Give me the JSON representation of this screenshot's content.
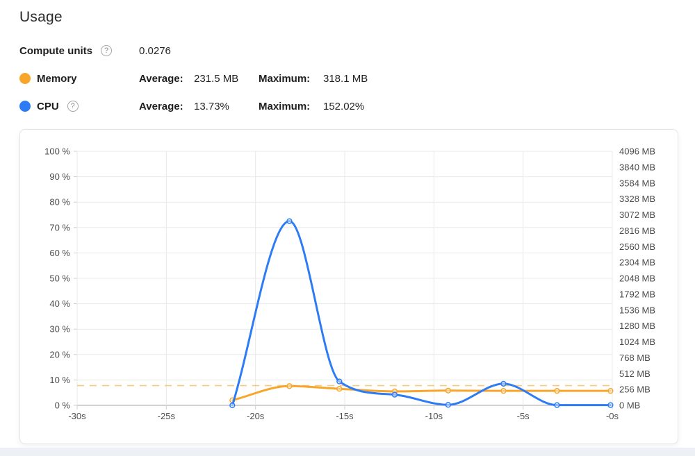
{
  "page": {
    "title": "Usage"
  },
  "stats": {
    "compute_units": {
      "label": "Compute units",
      "help_icon": "?",
      "value": "0.0276"
    },
    "memory": {
      "label": "Memory",
      "color": "#f7a62a",
      "average_label": "Average:",
      "average_value": "231.5 MB",
      "maximum_label": "Maximum:",
      "maximum_value": "318.1 MB"
    },
    "cpu": {
      "label": "CPU",
      "color": "#2e7cf5",
      "help_icon": "?",
      "average_label": "Average:",
      "average_value": "13.73%",
      "maximum_label": "Maximum:",
      "maximum_value": "152.02%"
    }
  },
  "chart_data": {
    "type": "line",
    "x_seconds": [
      -21.3,
      -18.1,
      -15.3,
      -12.2,
      -9.2,
      -6.1,
      -3.1,
      -0.1
    ],
    "series": [
      {
        "name": "Memory",
        "axis": "right",
        "unit": "MB",
        "color": "#f7a62a",
        "values": [
          82,
          310,
          266,
          225,
          238,
          233,
          233,
          233
        ]
      },
      {
        "name": "CPU",
        "axis": "left",
        "unit": "%",
        "color": "#2e7cf5",
        "values": [
          0,
          72.5,
          9.4,
          4.2,
          0.2,
          8.5,
          0.1,
          0.1
        ]
      }
    ],
    "reference_line": {
      "series": "Memory",
      "meaning": "maximum",
      "value": 318.1,
      "axis": "right",
      "style": "dashed",
      "color": "#f7a62a"
    },
    "left_axis": {
      "min": 0,
      "max": 100,
      "step": 10,
      "label_format": "{v} %"
    },
    "right_axis": {
      "min": 0,
      "max": 4096,
      "step": 256,
      "label_format": "{v} MB"
    },
    "x_axis": {
      "min": -30,
      "max": 0,
      "step": 5,
      "labels": [
        "-30s",
        "-25s",
        "-20s",
        "-15s",
        "-10s",
        "-5s",
        "-0s"
      ]
    },
    "grid": {
      "horizontal": true,
      "vertical": true
    },
    "colors": {
      "grid": "#e9e9e9",
      "baseline": "#a3a3a3",
      "tick": "#cfcfcf"
    }
  }
}
